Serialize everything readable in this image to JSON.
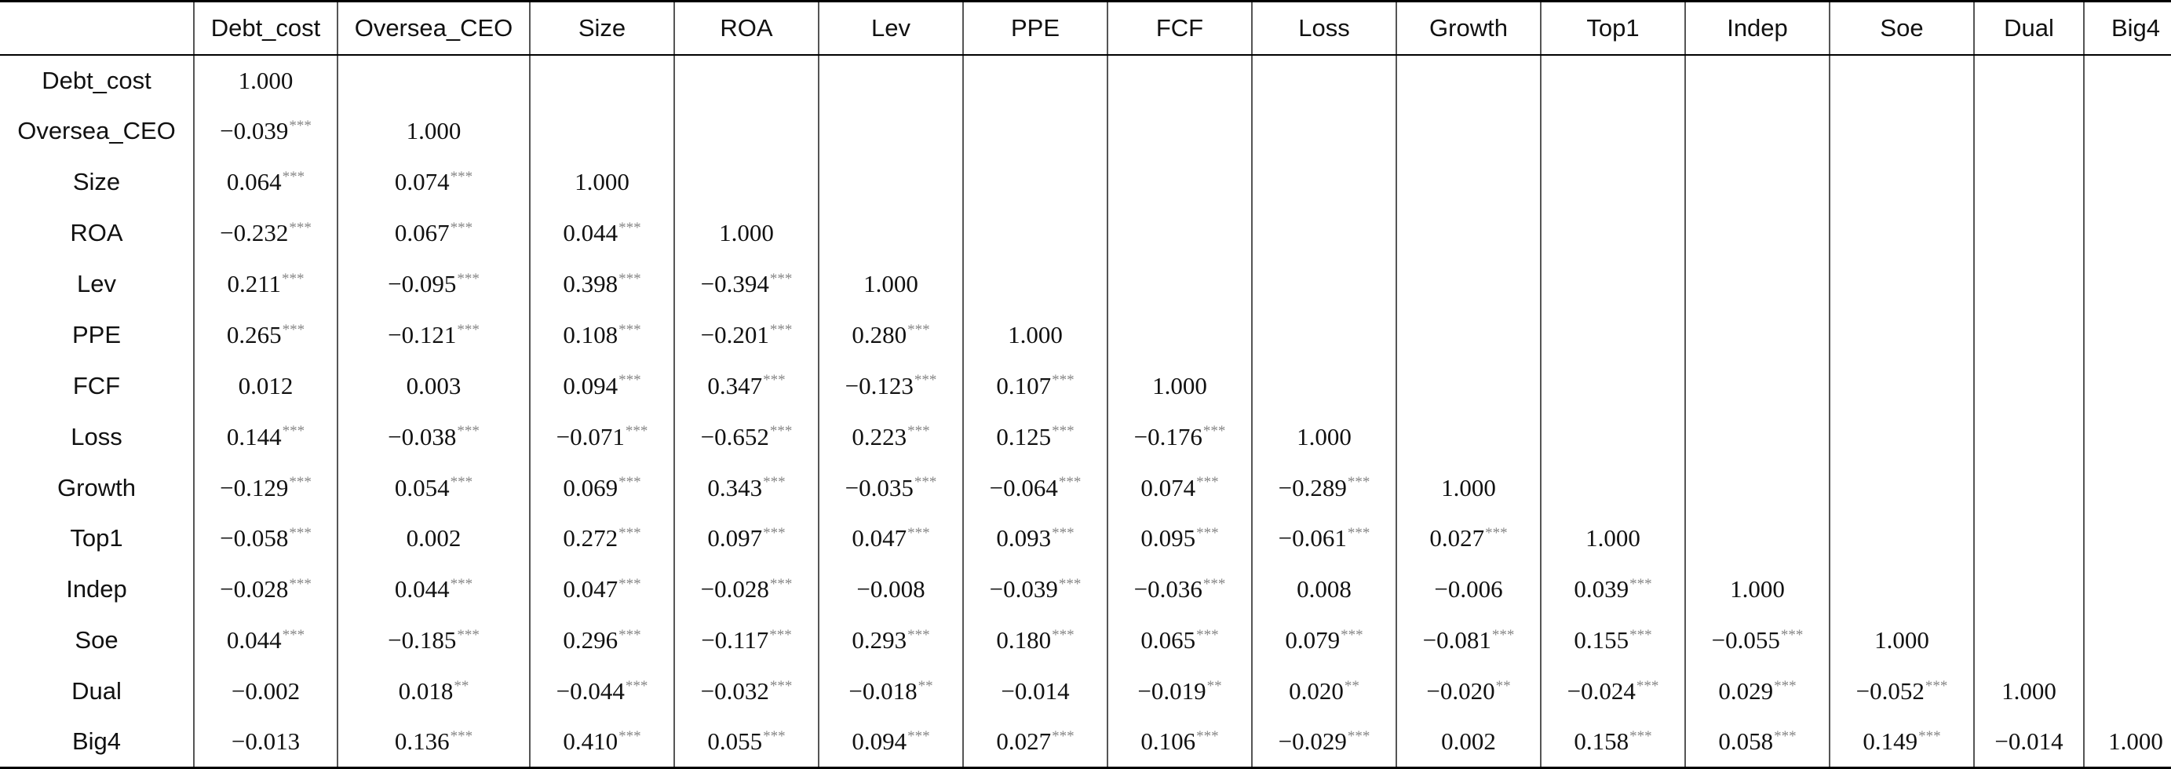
{
  "table": {
    "corner": "",
    "columns": [
      "Debt_cost",
      "Oversea_CEO",
      "Size",
      "ROA",
      "Lev",
      "PPE",
      "FCF",
      "Loss",
      "Growth",
      "Top1",
      "Indep",
      "Soe",
      "Dual",
      "Big4"
    ],
    "rows": [
      {
        "label": "Debt_cost",
        "cells": [
          {
            "v": "1.000",
            "s": ""
          }
        ]
      },
      {
        "label": "Oversea_CEO",
        "cells": [
          {
            "v": "−0.039",
            "s": "***"
          },
          {
            "v": "1.000",
            "s": ""
          }
        ]
      },
      {
        "label": "Size",
        "cells": [
          {
            "v": "0.064",
            "s": "***"
          },
          {
            "v": "0.074",
            "s": "***"
          },
          {
            "v": "1.000",
            "s": ""
          }
        ]
      },
      {
        "label": "ROA",
        "cells": [
          {
            "v": "−0.232",
            "s": "***"
          },
          {
            "v": "0.067",
            "s": "***"
          },
          {
            "v": "0.044",
            "s": "***"
          },
          {
            "v": "1.000",
            "s": ""
          }
        ]
      },
      {
        "label": "Lev",
        "cells": [
          {
            "v": "0.211",
            "s": "***"
          },
          {
            "v": "−0.095",
            "s": "***"
          },
          {
            "v": "0.398",
            "s": "***"
          },
          {
            "v": "−0.394",
            "s": "***"
          },
          {
            "v": "1.000",
            "s": ""
          }
        ]
      },
      {
        "label": "PPE",
        "cells": [
          {
            "v": "0.265",
            "s": "***"
          },
          {
            "v": "−0.121",
            "s": "***"
          },
          {
            "v": "0.108",
            "s": "***"
          },
          {
            "v": "−0.201",
            "s": "***"
          },
          {
            "v": "0.280",
            "s": "***"
          },
          {
            "v": "1.000",
            "s": ""
          }
        ]
      },
      {
        "label": "FCF",
        "cells": [
          {
            "v": "0.012",
            "s": ""
          },
          {
            "v": "0.003",
            "s": ""
          },
          {
            "v": "0.094",
            "s": "***"
          },
          {
            "v": "0.347",
            "s": "***"
          },
          {
            "v": "−0.123",
            "s": "***"
          },
          {
            "v": "0.107",
            "s": "***"
          },
          {
            "v": "1.000",
            "s": ""
          }
        ]
      },
      {
        "label": "Loss",
        "cells": [
          {
            "v": "0.144",
            "s": "***"
          },
          {
            "v": "−0.038",
            "s": "***"
          },
          {
            "v": "−0.071",
            "s": "***"
          },
          {
            "v": "−0.652",
            "s": "***"
          },
          {
            "v": "0.223",
            "s": "***"
          },
          {
            "v": "0.125",
            "s": "***"
          },
          {
            "v": "−0.176",
            "s": "***"
          },
          {
            "v": "1.000",
            "s": ""
          }
        ]
      },
      {
        "label": "Growth",
        "cells": [
          {
            "v": "−0.129",
            "s": "***"
          },
          {
            "v": "0.054",
            "s": "***"
          },
          {
            "v": "0.069",
            "s": "***"
          },
          {
            "v": "0.343",
            "s": "***"
          },
          {
            "v": "−0.035",
            "s": "***"
          },
          {
            "v": "−0.064",
            "s": "***"
          },
          {
            "v": "0.074",
            "s": "***"
          },
          {
            "v": "−0.289",
            "s": "***"
          },
          {
            "v": "1.000",
            "s": ""
          }
        ]
      },
      {
        "label": "Top1",
        "cells": [
          {
            "v": "−0.058",
            "s": "***"
          },
          {
            "v": "0.002",
            "s": ""
          },
          {
            "v": "0.272",
            "s": "***"
          },
          {
            "v": "0.097",
            "s": "***"
          },
          {
            "v": "0.047",
            "s": "***"
          },
          {
            "v": "0.093",
            "s": "***"
          },
          {
            "v": "0.095",
            "s": "***"
          },
          {
            "v": "−0.061",
            "s": "***"
          },
          {
            "v": "0.027",
            "s": "***"
          },
          {
            "v": "1.000",
            "s": ""
          }
        ]
      },
      {
        "label": "Indep",
        "cells": [
          {
            "v": "−0.028",
            "s": "***"
          },
          {
            "v": "0.044",
            "s": "***"
          },
          {
            "v": "0.047",
            "s": "***"
          },
          {
            "v": "−0.028",
            "s": "***"
          },
          {
            "v": "−0.008",
            "s": ""
          },
          {
            "v": "−0.039",
            "s": "***"
          },
          {
            "v": "−0.036",
            "s": "***"
          },
          {
            "v": "0.008",
            "s": ""
          },
          {
            "v": "−0.006",
            "s": ""
          },
          {
            "v": "0.039",
            "s": "***"
          },
          {
            "v": "1.000",
            "s": ""
          }
        ]
      },
      {
        "label": "Soe",
        "cells": [
          {
            "v": "0.044",
            "s": "***"
          },
          {
            "v": "−0.185",
            "s": "***"
          },
          {
            "v": "0.296",
            "s": "***"
          },
          {
            "v": "−0.117",
            "s": "***"
          },
          {
            "v": "0.293",
            "s": "***"
          },
          {
            "v": "0.180",
            "s": "***"
          },
          {
            "v": "0.065",
            "s": "***"
          },
          {
            "v": "0.079",
            "s": "***"
          },
          {
            "v": "−0.081",
            "s": "***"
          },
          {
            "v": "0.155",
            "s": "***"
          },
          {
            "v": "−0.055",
            "s": "***"
          },
          {
            "v": "1.000",
            "s": ""
          }
        ]
      },
      {
        "label": "Dual",
        "cells": [
          {
            "v": "−0.002",
            "s": ""
          },
          {
            "v": "0.018",
            "s": "**"
          },
          {
            "v": "−0.044",
            "s": "***"
          },
          {
            "v": "−0.032",
            "s": "***"
          },
          {
            "v": "−0.018",
            "s": "**"
          },
          {
            "v": "−0.014",
            "s": ""
          },
          {
            "v": "−0.019",
            "s": "**"
          },
          {
            "v": "0.020",
            "s": "**"
          },
          {
            "v": "−0.020",
            "s": "**"
          },
          {
            "v": "−0.024",
            "s": "***"
          },
          {
            "v": "0.029",
            "s": "***"
          },
          {
            "v": "−0.052",
            "s": "***"
          },
          {
            "v": "1.000",
            "s": ""
          }
        ]
      },
      {
        "label": "Big4",
        "cells": [
          {
            "v": "−0.013",
            "s": ""
          },
          {
            "v": "0.136",
            "s": "***"
          },
          {
            "v": "0.410",
            "s": "***"
          },
          {
            "v": "0.055",
            "s": "***"
          },
          {
            "v": "0.094",
            "s": "***"
          },
          {
            "v": "0.027",
            "s": "***"
          },
          {
            "v": "0.106",
            "s": "***"
          },
          {
            "v": "−0.029",
            "s": "***"
          },
          {
            "v": "0.002",
            "s": ""
          },
          {
            "v": "0.158",
            "s": "***"
          },
          {
            "v": "0.058",
            "s": "***"
          },
          {
            "v": "0.149",
            "s": "***"
          },
          {
            "v": "−0.014",
            "s": ""
          },
          {
            "v": "1.000",
            "s": ""
          }
        ]
      }
    ]
  }
}
